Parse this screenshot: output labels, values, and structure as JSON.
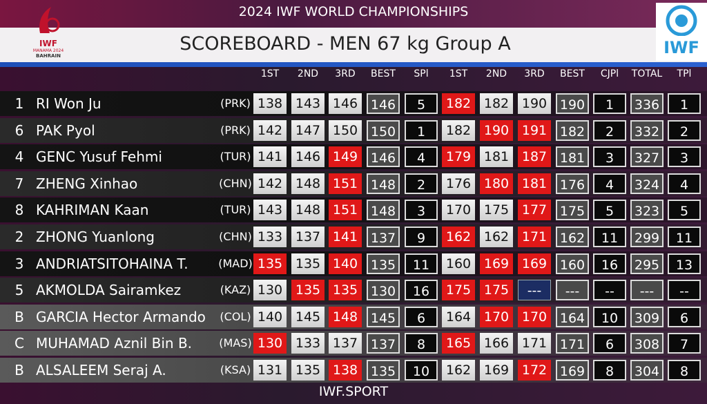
{
  "header": {
    "event": "2024 IWF WORLD CHAMPIONSHIPS",
    "title": "SCOREBOARD - MEN 67 kg Group A",
    "host_logo": [
      "IWF",
      "MANAMA 2024",
      "BAHRAIN"
    ],
    "iwf_logo": "IWF"
  },
  "columns": [
    "1ST",
    "2ND",
    "3RD",
    "BEST",
    "SPl",
    "1ST",
    "2ND",
    "3RD",
    "BEST",
    "CJPl",
    "TOTAL",
    "TPl"
  ],
  "table": {
    "rows": [
      {
        "lot": "1",
        "name": "RI Won Ju",
        "country": "(PRK)",
        "cells": [
          138,
          143,
          146,
          146,
          5,
          182,
          182,
          190,
          190,
          1,
          336,
          1
        ],
        "results": [
          "good",
          "good",
          "good",
          "fail",
          "good",
          "good"
        ]
      },
      {
        "lot": "6",
        "name": "PAK Pyol",
        "country": "(PRK)",
        "cells": [
          142,
          147,
          150,
          150,
          1,
          182,
          190,
          191,
          182,
          2,
          332,
          2
        ],
        "results": [
          "good",
          "good",
          "good",
          "good",
          "fail",
          "fail"
        ]
      },
      {
        "lot": "4",
        "name": "GENC Yusuf Fehmi",
        "country": "(TUR)",
        "cells": [
          141,
          146,
          149,
          146,
          4,
          179,
          181,
          187,
          181,
          3,
          327,
          3
        ],
        "results": [
          "good",
          "good",
          "fail",
          "fail",
          "good",
          "fail"
        ]
      },
      {
        "lot": "7",
        "name": "ZHENG Xinhao",
        "country": "(CHN)",
        "cells": [
          142,
          148,
          151,
          148,
          2,
          176,
          180,
          181,
          176,
          4,
          324,
          4
        ],
        "results": [
          "good",
          "good",
          "fail",
          "good",
          "fail",
          "fail"
        ]
      },
      {
        "lot": "8",
        "name": "KAHRIMAN Kaan",
        "country": "(TUR)",
        "cells": [
          143,
          148,
          151,
          148,
          3,
          170,
          175,
          177,
          175,
          5,
          323,
          5
        ],
        "results": [
          "good",
          "good",
          "fail",
          "good",
          "good",
          "fail"
        ]
      },
      {
        "lot": "2",
        "name": "ZHONG Yuanlong",
        "country": "(CHN)",
        "cells": [
          133,
          137,
          141,
          137,
          9,
          162,
          162,
          171,
          162,
          11,
          299,
          11
        ],
        "results": [
          "good",
          "good",
          "fail",
          "fail",
          "good",
          "fail"
        ]
      },
      {
        "lot": "3",
        "name": "ANDRIATSITOHAINA T.",
        "country": "(MAD)",
        "cells": [
          135,
          135,
          140,
          135,
          11,
          160,
          169,
          169,
          160,
          16,
          295,
          13
        ],
        "results": [
          "fail",
          "good",
          "fail",
          "good",
          "fail",
          "fail"
        ]
      },
      {
        "lot": "5",
        "name": "AKMOLDA Sairamkez",
        "country": "(KAZ)",
        "cells": [
          130,
          135,
          135,
          130,
          16,
          175,
          175,
          "---",
          "---",
          "--",
          "---",
          "--"
        ],
        "results": [
          "good",
          "fail",
          "fail",
          "fail",
          "fail",
          "next"
        ]
      },
      {
        "lot": "B",
        "name": "GARCIA Hector Armando",
        "country": "(COL)",
        "cells": [
          140,
          145,
          148,
          145,
          6,
          164,
          170,
          170,
          164,
          10,
          309,
          6
        ],
        "results": [
          "good",
          "good",
          "fail",
          "good",
          "fail",
          "fail"
        ]
      },
      {
        "lot": "C",
        "name": "MUHAMAD Aznil Bin B.",
        "country": "(MAS)",
        "cells": [
          130,
          133,
          137,
          137,
          8,
          165,
          166,
          171,
          171,
          6,
          308,
          7
        ],
        "results": [
          "fail",
          "good",
          "good",
          "fail",
          "good",
          "good"
        ]
      },
      {
        "lot": "B",
        "name": "ALSALEEM Seraj A.",
        "country": "(KSA)",
        "cells": [
          131,
          135,
          138,
          135,
          10,
          162,
          169,
          172,
          169,
          8,
          304,
          8
        ],
        "results": [
          "good",
          "good",
          "fail",
          "good",
          "good",
          "fail"
        ]
      }
    ]
  },
  "footer": "IWF.SPORT"
}
